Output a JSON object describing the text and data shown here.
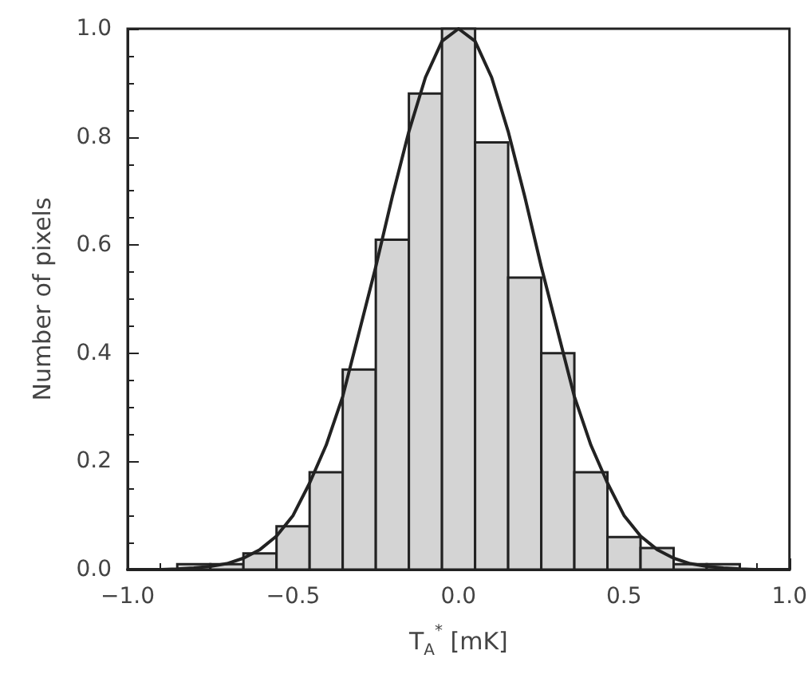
{
  "chart_data": {
    "type": "histogram",
    "xlabel": "T$_{A}$$^{*}$ [mK]",
    "ylabel": "Number of pixels",
    "bins": [
      -0.85,
      -0.75,
      -0.65,
      -0.55,
      -0.45,
      -0.35,
      -0.25,
      -0.15,
      -0.05,
      0.05,
      0.15,
      0.25,
      0.35,
      0.45,
      0.55,
      0.65,
      0.75,
      0.85
    ],
    "values": [
      0.01,
      0.01,
      0.03,
      0.08,
      0.18,
      0.37,
      0.61,
      0.88,
      1.0,
      0.79,
      0.54,
      0.4,
      0.18,
      0.06,
      0.04,
      0.01,
      0.01
    ],
    "color": "#d4d4d4",
    "series": [
      {
        "type": "line",
        "color": "#222222",
        "x": [
          -1.0,
          -0.9,
          -0.85,
          -0.8,
          -0.75,
          -0.7,
          -0.65,
          -0.6,
          -0.55,
          -0.5,
          -0.45,
          -0.4,
          -0.35,
          -0.3,
          -0.25,
          -0.2,
          -0.15,
          -0.1,
          -0.05,
          0.0,
          0.05,
          0.1,
          0.15,
          0.2,
          0.25,
          0.3,
          0.35,
          0.4,
          0.45,
          0.5,
          0.55,
          0.6,
          0.65,
          0.7,
          0.75,
          0.8,
          0.85,
          0.9,
          1.0
        ],
        "values": [
          0.0,
          0.0,
          0.001,
          0.003,
          0.006,
          0.011,
          0.021,
          0.037,
          0.062,
          0.1,
          0.16,
          0.23,
          0.32,
          0.44,
          0.56,
          0.69,
          0.81,
          0.91,
          0.977,
          1.0,
          0.977,
          0.91,
          0.81,
          0.69,
          0.56,
          0.44,
          0.32,
          0.23,
          0.16,
          0.1,
          0.062,
          0.037,
          0.021,
          0.011,
          0.006,
          0.003,
          0.001,
          0.0,
          0.0
        ]
      }
    ],
    "xlim": [
      -1.0,
      1.0
    ],
    "xticks": [
      {
        "value": -1.0,
        "label": "−1.0"
      },
      {
        "value": -0.5,
        "label": "−0.5"
      },
      {
        "value": 0.0,
        "label": "0.0"
      },
      {
        "value": 0.5,
        "label": "0.5"
      },
      {
        "value": 1.0,
        "label": "1.0"
      }
    ],
    "ylim": [
      0.0,
      1.0
    ],
    "yticks": [
      {
        "value": 0.0,
        "label": "0.0"
      },
      {
        "value": 0.2,
        "label": "0.2"
      },
      {
        "value": 0.4,
        "label": "0.4"
      },
      {
        "value": 0.6,
        "label": "0.6"
      },
      {
        "value": 0.8,
        "label": "0.8"
      },
      {
        "value": 1.0,
        "label": "1.0"
      }
    ],
    "grid": false,
    "marker": "none",
    "line_style": "solid"
  }
}
